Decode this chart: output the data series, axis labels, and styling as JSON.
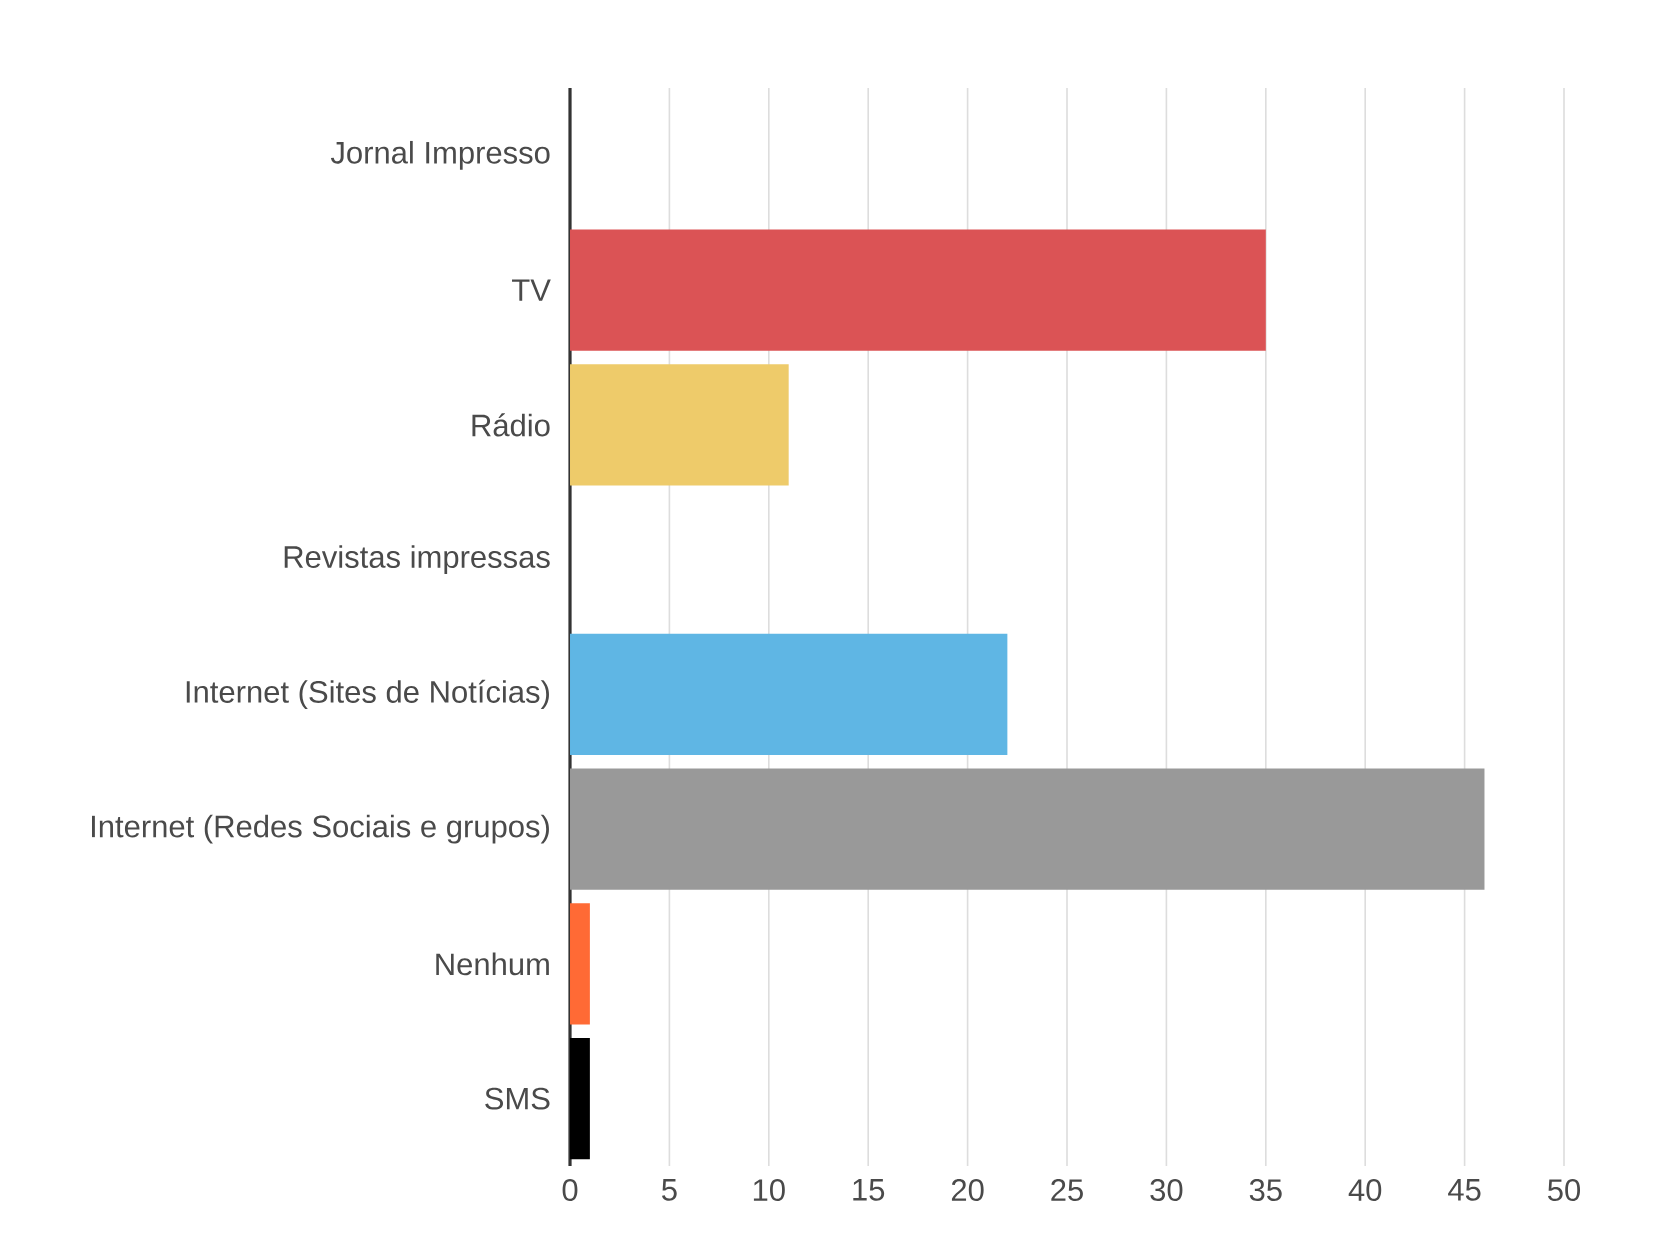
{
  "chart_data": {
    "type": "bar",
    "orientation": "horizontal",
    "categories": [
      "Jornal Impresso",
      "TV",
      "Rádio",
      "Revistas impressas",
      "Internet (Sites de Notícias)",
      "Internet (Redes Sociais e grupos)",
      "Nenhum",
      "SMS"
    ],
    "values": [
      0,
      35,
      11,
      0,
      22,
      46,
      1,
      1
    ],
    "colors": [
      null,
      "#db5355",
      "#eecb6a",
      null,
      "#5fb6e4",
      "#999999",
      "#ff6a35",
      "#000000"
    ],
    "xlim": [
      0,
      50
    ],
    "xticks": [
      0,
      5,
      10,
      15,
      20,
      25,
      30,
      35,
      40,
      45,
      50
    ],
    "grid": "x"
  }
}
